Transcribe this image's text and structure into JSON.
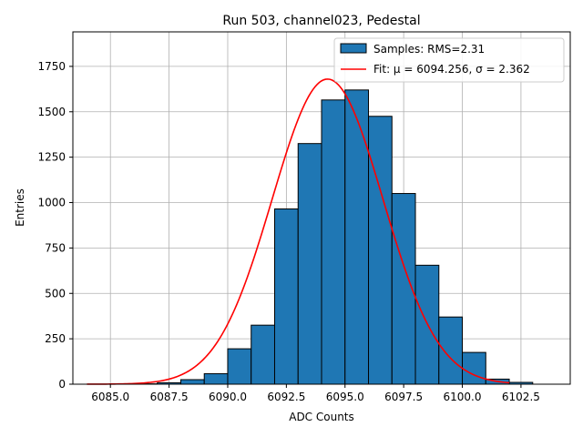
{
  "chart_data": {
    "type": "bar",
    "title": "Run 503, channel023, Pedestal",
    "xlabel": "ADC Counts",
    "ylabel": "Entries",
    "xlim": [
      6083.4,
      6104.6
    ],
    "ylim": [
      0,
      1940
    ],
    "xticks": [
      6085.0,
      6087.5,
      6090.0,
      6092.5,
      6095.0,
      6097.5,
      6100.0,
      6102.5
    ],
    "xtick_labels": [
      "6085.0",
      "6087.5",
      "6090.0",
      "6092.5",
      "6095.0",
      "6097.5",
      "6100.0",
      "6102.5"
    ],
    "yticks": [
      0,
      250,
      500,
      750,
      1000,
      1250,
      1500,
      1750
    ],
    "ytick_labels": [
      "0",
      "250",
      "500",
      "750",
      "1000",
      "1250",
      "1500",
      "1750"
    ],
    "grid": true,
    "legend_position": "top-right",
    "bin_width": 1,
    "bins": [
      {
        "left": 6084,
        "value": 0
      },
      {
        "left": 6085,
        "value": 0
      },
      {
        "left": 6086,
        "value": 2
      },
      {
        "left": 6087,
        "value": 8
      },
      {
        "left": 6088,
        "value": 25
      },
      {
        "left": 6089,
        "value": 58
      },
      {
        "left": 6090,
        "value": 195
      },
      {
        "left": 6091,
        "value": 325
      },
      {
        "left": 6092,
        "value": 965
      },
      {
        "left": 6093,
        "value": 1325
      },
      {
        "left": 6094,
        "value": 1565
      },
      {
        "left": 6095,
        "value": 1620
      },
      {
        "left": 6096,
        "value": 1475
      },
      {
        "left": 6097,
        "value": 1050
      },
      {
        "left": 6098,
        "value": 655
      },
      {
        "left": 6099,
        "value": 370
      },
      {
        "left": 6100,
        "value": 175
      },
      {
        "left": 6101,
        "value": 28
      },
      {
        "left": 6102,
        "value": 10
      }
    ],
    "fit": {
      "mu": 6094.256,
      "sigma": 2.362,
      "peak": 1680,
      "x_range": [
        6084.0,
        6102.0
      ]
    },
    "series": [
      {
        "name": "Samples: RMS=2.31",
        "kind": "histogram",
        "color": "#1f77b4"
      },
      {
        "name": "Fit: μ = 6094.256, σ = 2.362",
        "kind": "line",
        "color": "#ff0000"
      }
    ]
  }
}
